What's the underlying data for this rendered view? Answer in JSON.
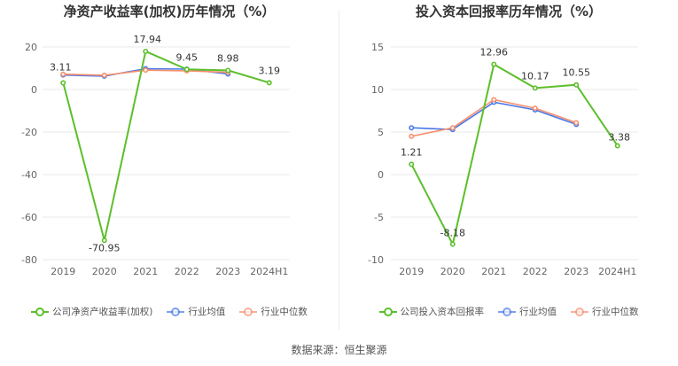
{
  "source": "数据来源：恒生聚源",
  "chart_data": [
    {
      "type": "line",
      "title": "净资产收益率(加权)历年情况（%）",
      "categories": [
        "2019",
        "2020",
        "2021",
        "2022",
        "2023",
        "2024H1"
      ],
      "ylim": [
        -80,
        20
      ],
      "yticks": [
        20,
        0,
        -20,
        -40,
        -60,
        -80
      ],
      "grid": true,
      "legend_position": "bottom",
      "series": [
        {
          "name": "公司净资产收益率(加权)",
          "color": "#5cbf2a",
          "values": [
            3.11,
            -70.95,
            17.94,
            9.45,
            8.98,
            3.19
          ],
          "labels": [
            "3.11",
            "-70.95",
            "17.94",
            "9.45",
            "8.98",
            "3.19"
          ]
        },
        {
          "name": "行业均值",
          "color": "#4a78e6",
          "values": [
            6.8,
            6.3,
            9.8,
            9.6,
            7.3,
            null
          ]
        },
        {
          "name": "行业中位数",
          "color": "#f7906e",
          "values": [
            7.2,
            6.7,
            9.1,
            8.8,
            8.1,
            null
          ]
        }
      ]
    },
    {
      "type": "line",
      "title": "投入资本回报率历年情况（%）",
      "categories": [
        "2019",
        "2020",
        "2021",
        "2022",
        "2023",
        "2024H1"
      ],
      "ylim": [
        -10,
        15
      ],
      "yticks": [
        15,
        10,
        5,
        0,
        -5,
        -10
      ],
      "grid": true,
      "legend_position": "bottom",
      "series": [
        {
          "name": "公司投入资本回报率",
          "color": "#5cbf2a",
          "values": [
            1.21,
            -8.18,
            12.96,
            10.17,
            10.55,
            3.38
          ],
          "labels": [
            "1.21",
            "-8.18",
            "12.96",
            "10.17",
            "10.55",
            "3.38"
          ]
        },
        {
          "name": "行业均值",
          "color": "#4a78e6",
          "values": [
            5.5,
            5.3,
            8.5,
            7.6,
            5.9,
            null
          ]
        },
        {
          "name": "行业中位数",
          "color": "#f7906e",
          "values": [
            4.5,
            5.5,
            8.8,
            7.8,
            6.1,
            null
          ]
        }
      ]
    }
  ]
}
